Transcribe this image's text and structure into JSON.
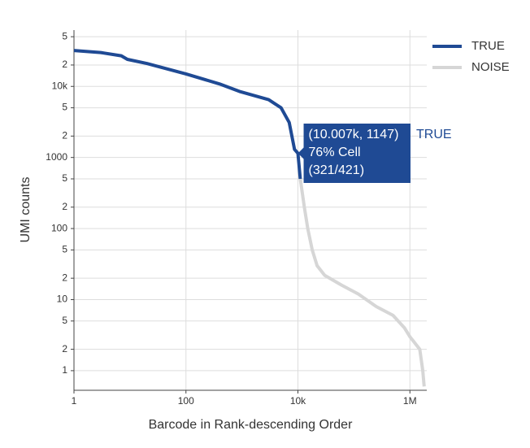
{
  "chart_data": {
    "type": "line",
    "xlabel": "Barcode in Rank-descending Order",
    "ylabel": "UMI counts",
    "xscale": "log",
    "yscale": "log",
    "grid": true,
    "legend": "top-right",
    "xlim": [
      1,
      2000000
    ],
    "xticks": [
      1,
      100,
      {
        "value": 10000,
        "label": "10k"
      },
      {
        "value": 1000000,
        "label": "1M"
      }
    ],
    "ylim": [
      0.53,
      62000
    ],
    "yticks": [
      {
        "value": 50000,
        "label": "5"
      },
      {
        "value": 20000,
        "label": "2"
      },
      {
        "value": 10000,
        "label": "10k"
      },
      {
        "value": 5000,
        "label": "5"
      },
      {
        "value": 2000,
        "label": "2"
      },
      1000,
      {
        "value": 500,
        "label": "5"
      },
      {
        "value": 200,
        "label": "2"
      },
      100,
      {
        "value": 50,
        "label": "5"
      },
      {
        "value": 20,
        "label": "2"
      },
      10,
      {
        "value": 5,
        "label": "5"
      },
      {
        "value": 2,
        "label": "2"
      },
      1
    ],
    "series": [
      {
        "name": "TRUE",
        "color": "#1f4a94",
        "x": [
          1,
          3,
          7,
          9,
          20,
          100,
          400,
          900,
          3000,
          5000,
          7000,
          8700,
          10007,
          11000
        ],
        "values": [
          32000,
          30000,
          27000,
          24000,
          21000,
          15000,
          10800,
          8500,
          6500,
          5000,
          3100,
          1300,
          1147,
          500
        ]
      },
      {
        "name": "NOISE",
        "color": "#d6d6d6",
        "x": [
          11000,
          13000,
          15000,
          18000,
          22000,
          30000,
          60000,
          120000,
          250000,
          500000,
          800000,
          1000000,
          1500000,
          1700000,
          1800000
        ],
        "values": [
          500,
          200,
          100,
          50,
          30,
          22,
          16,
          12,
          8,
          6,
          4,
          3,
          2,
          1,
          0.6
        ]
      }
    ],
    "tooltip": {
      "lines": [
        "(10.007k, 1147)",
        "76% Cell",
        "(321/421)"
      ],
      "series": "TRUE"
    }
  }
}
